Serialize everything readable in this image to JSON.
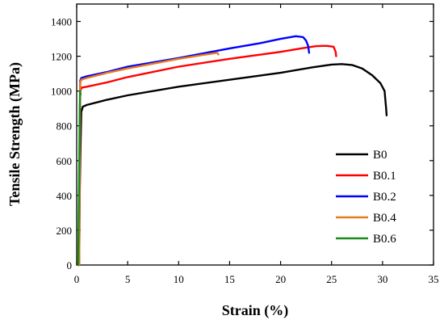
{
  "chart_data": {
    "type": "line",
    "xlabel": "Strain (%)",
    "ylabel": "Tensile Strength (MPa)",
    "xlim": [
      0,
      35
    ],
    "ylim": [
      0,
      1500
    ],
    "xticks": [
      0,
      5,
      10,
      15,
      20,
      25,
      30,
      35
    ],
    "yticks": [
      0,
      200,
      400,
      600,
      800,
      1000,
      1200,
      1400
    ],
    "grid": false,
    "legend_position": "bottom-right",
    "series": [
      {
        "name": "B0",
        "color": "#000000",
        "points": [
          [
            0.2,
            0
          ],
          [
            0.35,
            600
          ],
          [
            0.45,
            880
          ],
          [
            0.6,
            910
          ],
          [
            1,
            920
          ],
          [
            3,
            950
          ],
          [
            5,
            975
          ],
          [
            10,
            1025
          ],
          [
            15,
            1065
          ],
          [
            20,
            1105
          ],
          [
            23,
            1135
          ],
          [
            25,
            1152
          ],
          [
            26,
            1155
          ],
          [
            27,
            1150
          ],
          [
            28,
            1130
          ],
          [
            29,
            1090
          ],
          [
            29.8,
            1045
          ],
          [
            30.2,
            1000
          ],
          [
            30.35,
            900
          ],
          [
            30.4,
            860
          ]
        ]
      },
      {
        "name": "B0.1",
        "color": "#ff0000",
        "points": [
          [
            0.25,
            0
          ],
          [
            0.3,
            600
          ],
          [
            0.35,
            1000
          ],
          [
            0.5,
            1020
          ],
          [
            1,
            1025
          ],
          [
            3,
            1050
          ],
          [
            5,
            1080
          ],
          [
            10,
            1140
          ],
          [
            15,
            1185
          ],
          [
            20,
            1225
          ],
          [
            22,
            1245
          ],
          [
            23.5,
            1258
          ],
          [
            24.5,
            1260
          ],
          [
            25.2,
            1255
          ],
          [
            25.4,
            1225
          ],
          [
            25.45,
            1200
          ]
        ]
      },
      {
        "name": "B0.2",
        "color": "#0000ff",
        "points": [
          [
            0.25,
            0
          ],
          [
            0.3,
            600
          ],
          [
            0.35,
            1060
          ],
          [
            0.45,
            1075
          ],
          [
            1,
            1085
          ],
          [
            3,
            1110
          ],
          [
            5,
            1140
          ],
          [
            10,
            1190
          ],
          [
            15,
            1245
          ],
          [
            18,
            1275
          ],
          [
            20,
            1300
          ],
          [
            21.5,
            1315
          ],
          [
            22.2,
            1310
          ],
          [
            22.5,
            1290
          ],
          [
            22.7,
            1260
          ],
          [
            22.8,
            1220
          ]
        ]
      },
      {
        "name": "B0.4",
        "color": "#e87b1a",
        "points": [
          [
            0.25,
            0
          ],
          [
            0.3,
            600
          ],
          [
            0.35,
            1050
          ],
          [
            0.45,
            1065
          ],
          [
            1,
            1075
          ],
          [
            3,
            1105
          ],
          [
            5,
            1130
          ],
          [
            10,
            1185
          ],
          [
            13,
            1213
          ],
          [
            13.8,
            1220
          ],
          [
            13.9,
            1210
          ]
        ]
      },
      {
        "name": "B0.6",
        "color": "#1a8c1a",
        "points": [
          [
            0.15,
            0
          ],
          [
            0.2,
            300
          ],
          [
            0.25,
            600
          ],
          [
            0.3,
            900
          ],
          [
            0.33,
            1000
          ],
          [
            0.35,
            1000
          ],
          [
            0.38,
            980
          ]
        ]
      }
    ]
  }
}
